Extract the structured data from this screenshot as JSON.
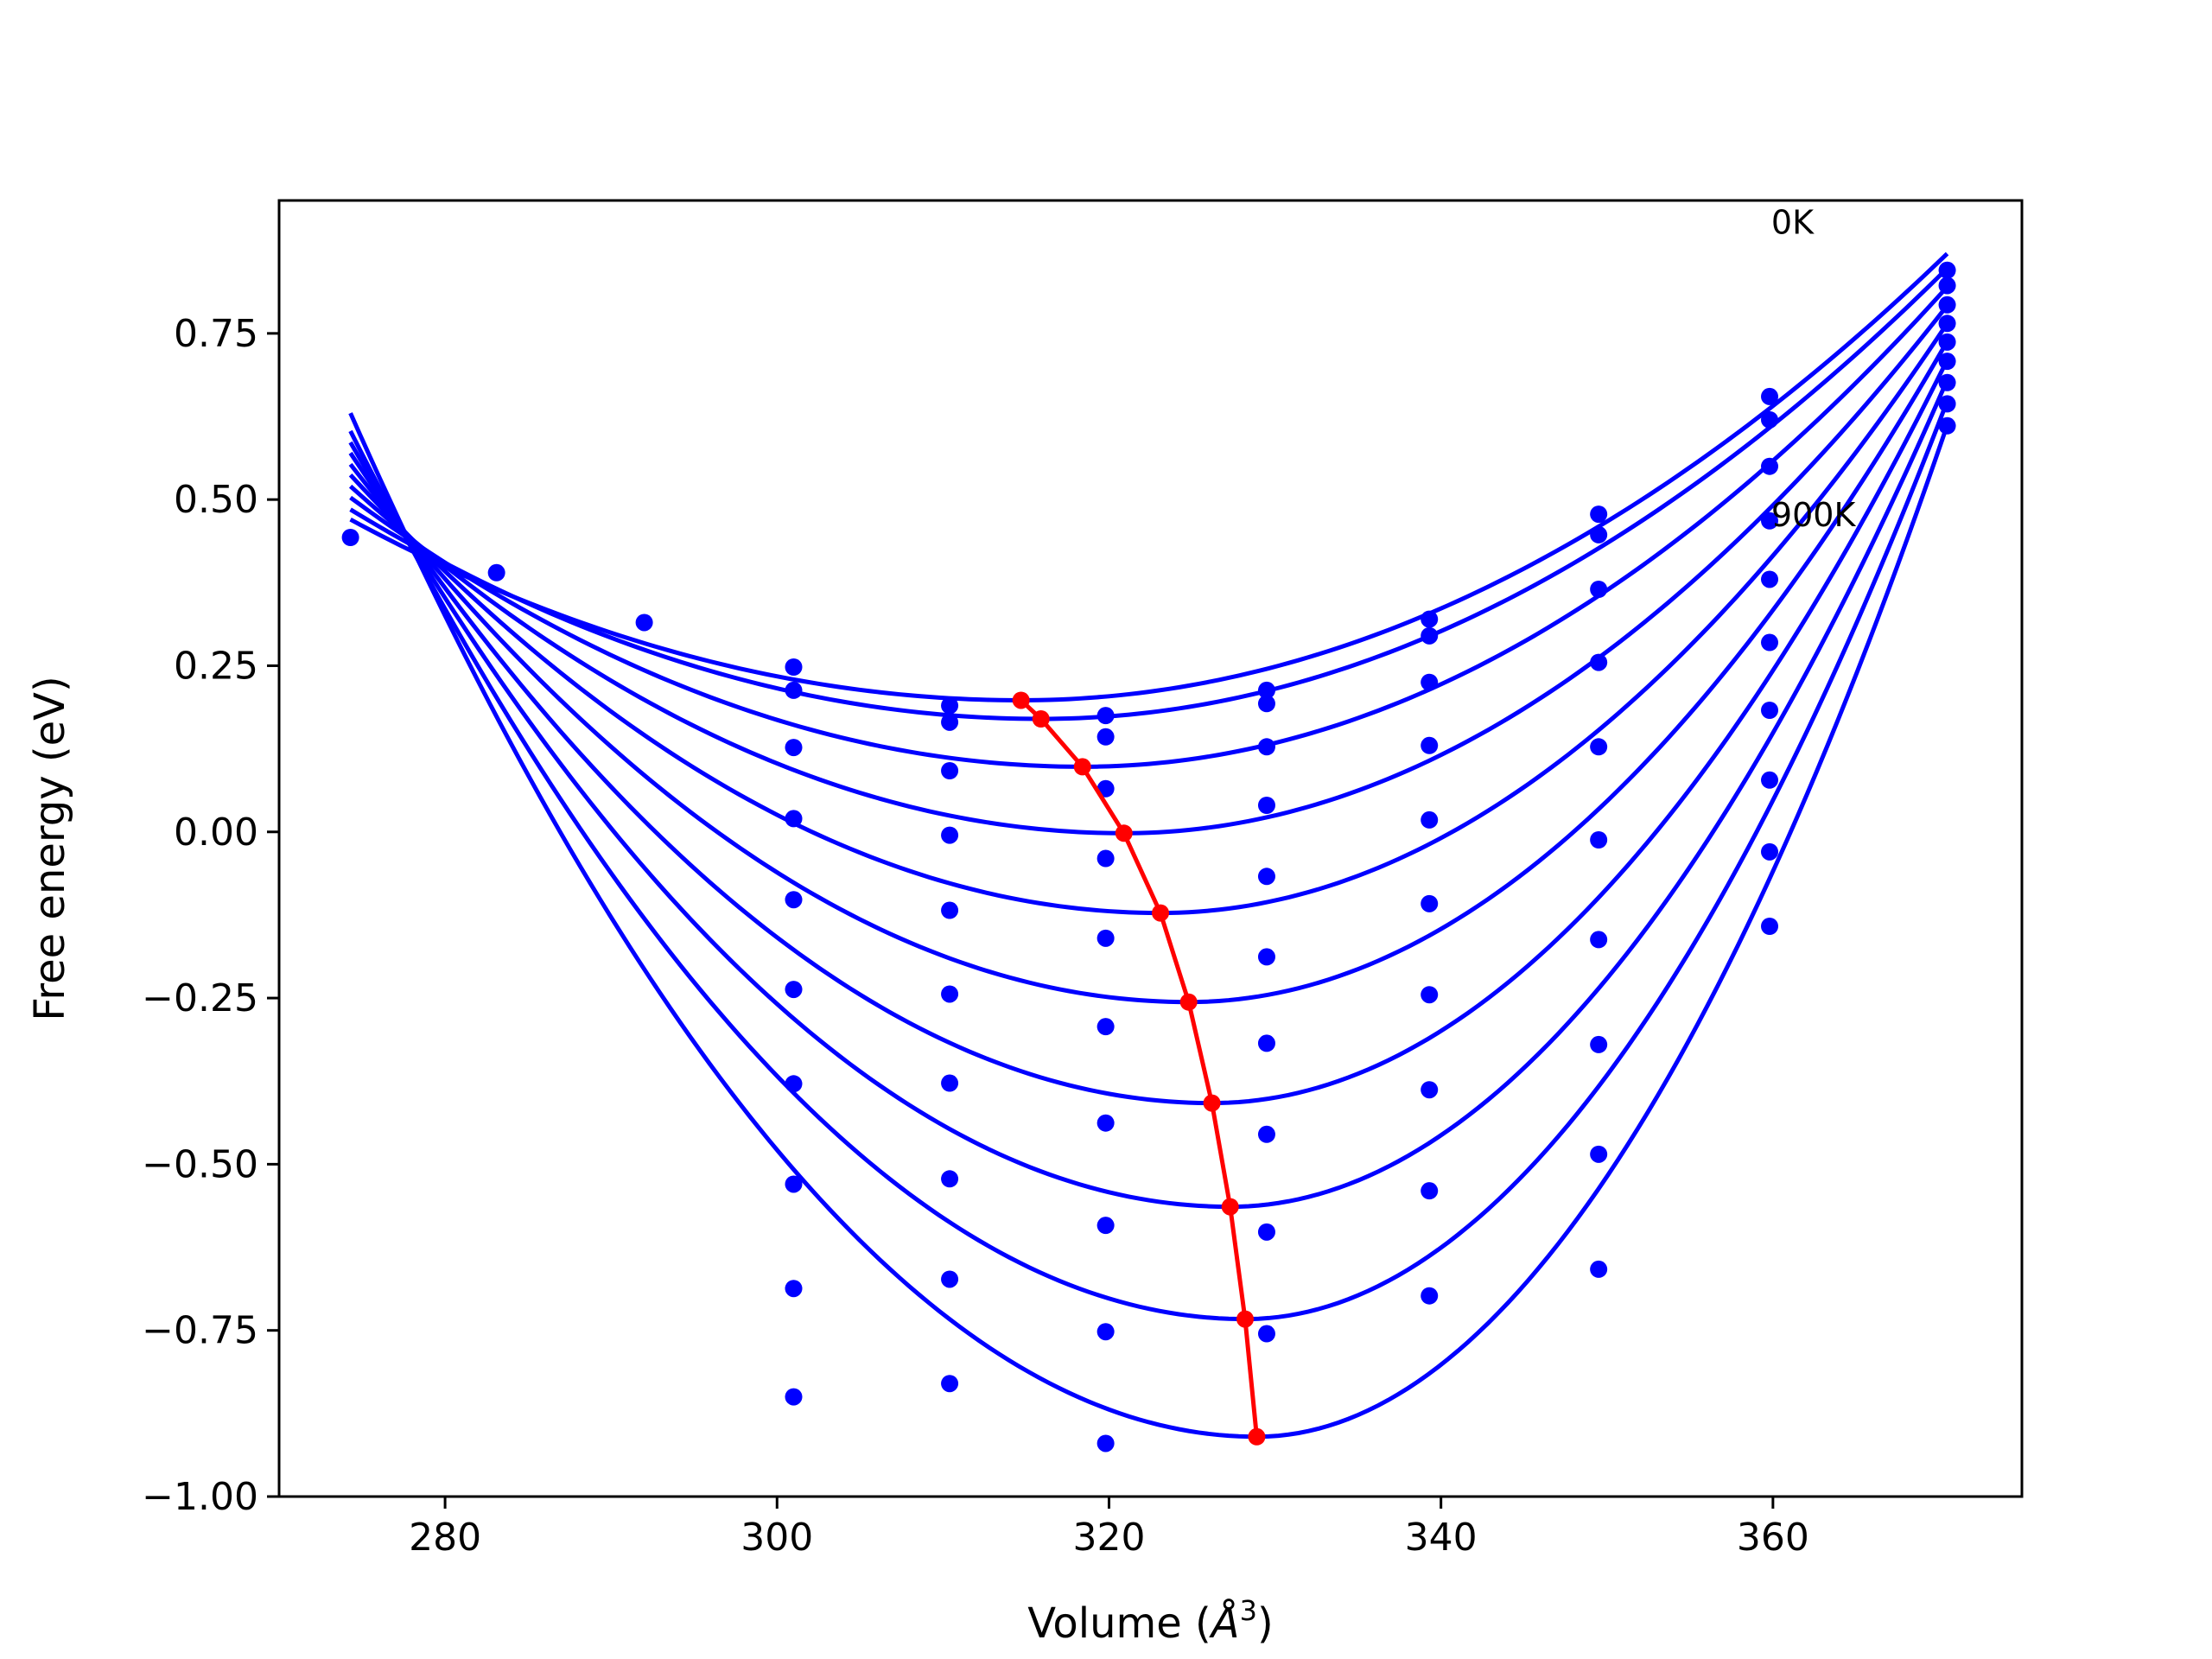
{
  "chart_data": {
    "type": "scatter",
    "title": "",
    "xlabel": "Volume (",
    "xlabel_symbol": "Å",
    "xlabel_sup": "3",
    "xlabel_close": ")",
    "ylabel": "Free energy (eV)",
    "xlim": [
      270,
      375
    ],
    "ylim": [
      -1.0,
      0.95
    ],
    "xticks": [
      {
        "value": 280,
        "label": "280"
      },
      {
        "value": 300,
        "label": "300"
      },
      {
        "value": 320,
        "label": "320"
      },
      {
        "value": 340,
        "label": "340"
      },
      {
        "value": 360,
        "label": "360"
      }
    ],
    "yticks": [
      {
        "value": -1.0,
        "label": "−1.00"
      },
      {
        "value": -0.75,
        "label": "−0.75"
      },
      {
        "value": -0.5,
        "label": "−0.50"
      },
      {
        "value": -0.25,
        "label": "−0.25"
      },
      {
        "value": 0.0,
        "label": "0.00"
      },
      {
        "value": 0.25,
        "label": "0.25"
      },
      {
        "value": 0.5,
        "label": "0.50"
      },
      {
        "value": 0.75,
        "label": "0.75"
      }
    ],
    "grid": false,
    "colors": {
      "curves": "#0000ff",
      "minima": "#ff0000"
    },
    "annotations": [
      {
        "text": "0K",
        "x": 359.9,
        "y": 0.9
      },
      {
        "text": "900K",
        "x": 359.9,
        "y": 0.46
      }
    ],
    "volumes": [
      274.3,
      283.1,
      292.0,
      301.0,
      310.4,
      319.8,
      329.5,
      339.3,
      349.5,
      359.8,
      370.5
    ],
    "curve_x_range": [
      274.3,
      370.5
    ],
    "fitted_curves": [
      {
        "v_min": 314.7,
        "e_min": 0.198,
        "e_left": 0.47,
        "e_right": 0.87
      },
      {
        "v_min": 315.9,
        "e_min": 0.17,
        "e_left": 0.485,
        "e_right": 0.848
      },
      {
        "v_min": 318.4,
        "e_min": 0.098,
        "e_left": 0.503,
        "e_right": 0.82
      },
      {
        "v_min": 320.9,
        "e_min": -0.002,
        "e_left": 0.52,
        "e_right": 0.792
      },
      {
        "v_min": 323.1,
        "e_min": -0.122,
        "e_left": 0.537,
        "e_right": 0.765
      },
      {
        "v_min": 324.8,
        "e_min": -0.256,
        "e_left": 0.553,
        "e_right": 0.738
      },
      {
        "v_min": 326.2,
        "e_min": -0.408,
        "e_left": 0.57,
        "e_right": 0.71
      },
      {
        "v_min": 327.3,
        "e_min": -0.564,
        "e_left": 0.586,
        "e_right": 0.68
      },
      {
        "v_min": 328.2,
        "e_min": -0.733,
        "e_left": 0.603,
        "e_right": 0.648
      },
      {
        "v_min": 328.9,
        "e_min": -0.91,
        "e_left": 0.63,
        "e_right": 0.612
      }
    ],
    "scatter_points": [
      {
        "x": 274.3,
        "y": 0.443
      },
      {
        "x": 283.1,
        "y": 0.39
      },
      {
        "x": 292.0,
        "y": 0.315
      },
      {
        "x": 301.0,
        "y": 0.248
      },
      {
        "x": 301.0,
        "y": 0.213
      },
      {
        "x": 301.0,
        "y": 0.127
      },
      {
        "x": 301.0,
        "y": 0.02
      },
      {
        "x": 301.0,
        "y": -0.102
      },
      {
        "x": 301.0,
        "y": -0.237
      },
      {
        "x": 301.0,
        "y": -0.379
      },
      {
        "x": 301.0,
        "y": -0.53
      },
      {
        "x": 301.0,
        "y": -0.687
      },
      {
        "x": 301.0,
        "y": -0.85
      },
      {
        "x": 310.4,
        "y": 0.19
      },
      {
        "x": 310.4,
        "y": 0.165
      },
      {
        "x": 310.4,
        "y": 0.092
      },
      {
        "x": 310.4,
        "y": -0.005
      },
      {
        "x": 310.4,
        "y": -0.118
      },
      {
        "x": 310.4,
        "y": -0.244
      },
      {
        "x": 310.4,
        "y": -0.378
      },
      {
        "x": 310.4,
        "y": -0.522
      },
      {
        "x": 310.4,
        "y": -0.673
      },
      {
        "x": 310.4,
        "y": -0.83
      },
      {
        "x": 319.8,
        "y": 0.175
      },
      {
        "x": 319.8,
        "y": 0.143
      },
      {
        "x": 319.8,
        "y": 0.065
      },
      {
        "x": 319.8,
        "y": -0.04
      },
      {
        "x": 319.8,
        "y": -0.16
      },
      {
        "x": 319.8,
        "y": -0.293
      },
      {
        "x": 319.8,
        "y": -0.438
      },
      {
        "x": 319.8,
        "y": -0.592
      },
      {
        "x": 319.8,
        "y": -0.752
      },
      {
        "x": 319.8,
        "y": -0.92
      },
      {
        "x": 329.5,
        "y": 0.213
      },
      {
        "x": 329.5,
        "y": 0.193
      },
      {
        "x": 329.5,
        "y": 0.128
      },
      {
        "x": 329.5,
        "y": 0.04
      },
      {
        "x": 329.5,
        "y": -0.067
      },
      {
        "x": 329.5,
        "y": -0.188
      },
      {
        "x": 329.5,
        "y": -0.318
      },
      {
        "x": 329.5,
        "y": -0.455
      },
      {
        "x": 329.5,
        "y": -0.602
      },
      {
        "x": 329.5,
        "y": -0.755
      },
      {
        "x": 339.3,
        "y": 0.32
      },
      {
        "x": 339.3,
        "y": 0.295
      },
      {
        "x": 339.3,
        "y": 0.225
      },
      {
        "x": 339.3,
        "y": 0.13
      },
      {
        "x": 339.3,
        "y": 0.018
      },
      {
        "x": 339.3,
        "y": -0.108
      },
      {
        "x": 339.3,
        "y": -0.245
      },
      {
        "x": 339.3,
        "y": -0.388
      },
      {
        "x": 339.3,
        "y": -0.54
      },
      {
        "x": 339.3,
        "y": -0.698
      },
      {
        "x": 349.5,
        "y": 0.478
      },
      {
        "x": 349.5,
        "y": 0.447
      },
      {
        "x": 349.5,
        "y": 0.365
      },
      {
        "x": 349.5,
        "y": 0.255
      },
      {
        "x": 349.5,
        "y": 0.128
      },
      {
        "x": 349.5,
        "y": -0.012
      },
      {
        "x": 349.5,
        "y": -0.162
      },
      {
        "x": 349.5,
        "y": -0.32
      },
      {
        "x": 349.5,
        "y": -0.485
      },
      {
        "x": 349.5,
        "y": -0.658
      },
      {
        "x": 359.8,
        "y": 0.655
      },
      {
        "x": 359.8,
        "y": 0.62
      },
      {
        "x": 359.8,
        "y": 0.55
      },
      {
        "x": 359.8,
        "y": 0.468
      },
      {
        "x": 359.8,
        "y": 0.38
      },
      {
        "x": 359.8,
        "y": 0.285
      },
      {
        "x": 359.8,
        "y": 0.183
      },
      {
        "x": 359.8,
        "y": 0.078
      },
      {
        "x": 359.8,
        "y": -0.03
      },
      {
        "x": 359.8,
        "y": -0.142
      },
      {
        "x": 370.5,
        "y": 0.845
      },
      {
        "x": 370.5,
        "y": 0.822
      },
      {
        "x": 370.5,
        "y": 0.793
      },
      {
        "x": 370.5,
        "y": 0.765
      },
      {
        "x": 370.5,
        "y": 0.737
      },
      {
        "x": 370.5,
        "y": 0.708
      },
      {
        "x": 370.5,
        "y": 0.676
      },
      {
        "x": 370.5,
        "y": 0.644
      },
      {
        "x": 370.5,
        "y": 0.611
      }
    ],
    "minima_line": [
      {
        "x": 314.7,
        "y": 0.198
      },
      {
        "x": 315.9,
        "y": 0.17
      },
      {
        "x": 318.4,
        "y": 0.098
      },
      {
        "x": 320.9,
        "y": -0.002
      },
      {
        "x": 323.1,
        "y": -0.122
      },
      {
        "x": 324.8,
        "y": -0.256
      },
      {
        "x": 326.2,
        "y": -0.408
      },
      {
        "x": 327.3,
        "y": -0.564
      },
      {
        "x": 328.2,
        "y": -0.733
      },
      {
        "x": 328.9,
        "y": -0.91
      }
    ]
  }
}
